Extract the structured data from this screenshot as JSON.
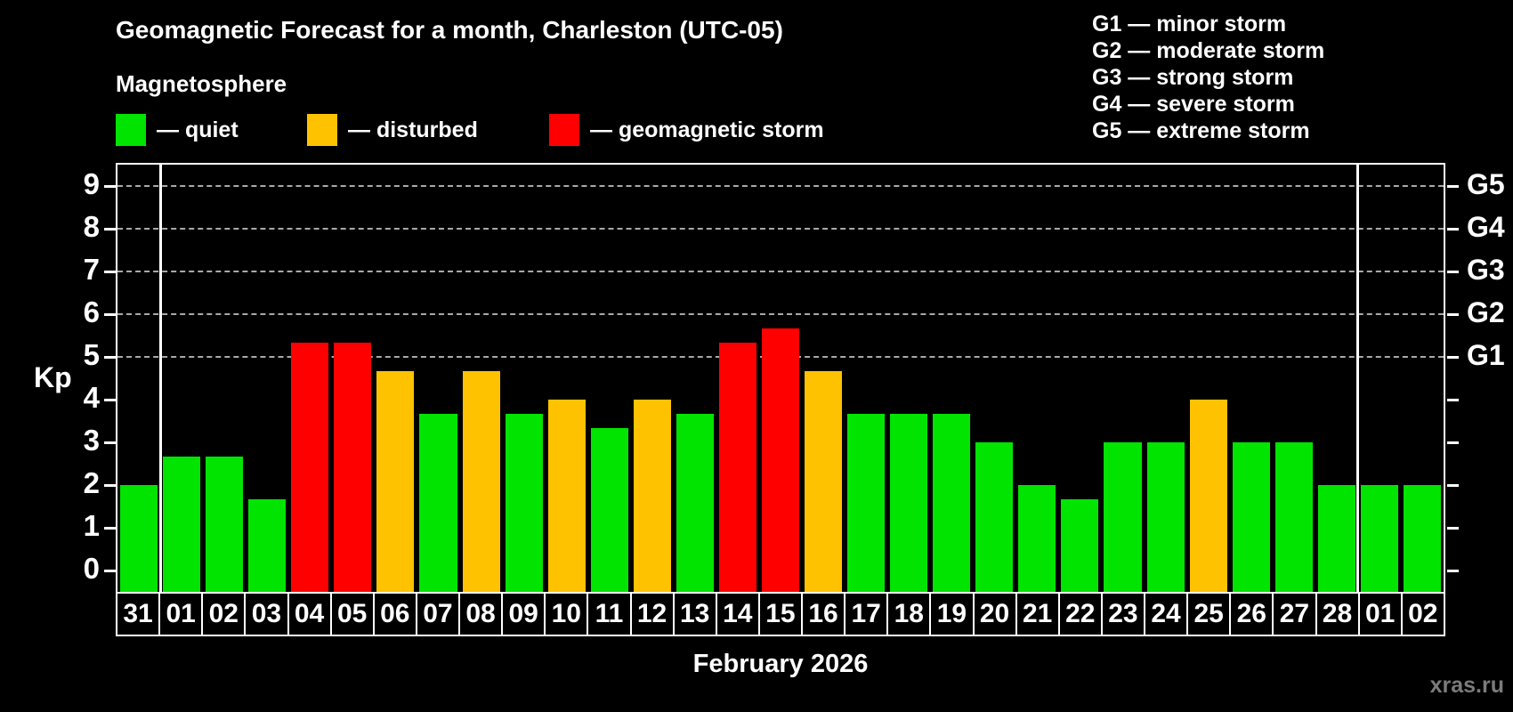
{
  "header": {
    "title": "Geomagnetic Forecast for a month, Charleston (UTC-05)",
    "subtitle": "Magnetosphere"
  },
  "legend": {
    "items": [
      {
        "name": "quiet",
        "label": "— quiet",
        "color": "#00e400"
      },
      {
        "name": "disturbed",
        "label": "— disturbed",
        "color": "#ffc200"
      },
      {
        "name": "storm",
        "label": "— geomagnetic storm",
        "color": "#ff0000"
      }
    ]
  },
  "g_legend": [
    "G1 — minor storm",
    "G2 — moderate storm",
    "G3 — strong storm",
    "G4 — severe storm",
    "G5 — extreme storm"
  ],
  "chart_data": {
    "type": "bar",
    "title": "Geomagnetic Forecast for a month, Charleston (UTC-05)",
    "xlabel": "February 2026",
    "ylabel": "Kp",
    "ylim": [
      -0.5,
      9.5
    ],
    "y_ticks": [
      0,
      1,
      2,
      3,
      4,
      5,
      6,
      7,
      8,
      9
    ],
    "gridlines_at": [
      5,
      6,
      7,
      8,
      9
    ],
    "grid": "dashed horizontal at Kp 5-9 only",
    "legend_position": "top",
    "right_axis_labels": [
      {
        "value": 5,
        "label": "G1"
      },
      {
        "value": 6,
        "label": "G2"
      },
      {
        "value": 7,
        "label": "G3"
      },
      {
        "value": 8,
        "label": "G4"
      },
      {
        "value": 9,
        "label": "G5"
      }
    ],
    "categories": [
      "31",
      "01",
      "02",
      "03",
      "04",
      "05",
      "06",
      "07",
      "08",
      "09",
      "10",
      "11",
      "12",
      "13",
      "14",
      "15",
      "16",
      "17",
      "18",
      "19",
      "20",
      "21",
      "22",
      "23",
      "24",
      "25",
      "26",
      "27",
      "28",
      "01",
      "02"
    ],
    "values": [
      2.0,
      2.67,
      2.67,
      1.67,
      5.33,
      5.33,
      4.67,
      3.67,
      4.67,
      3.67,
      4.0,
      3.33,
      4.0,
      3.67,
      5.33,
      5.67,
      4.67,
      3.67,
      3.67,
      3.67,
      3.0,
      2.0,
      1.67,
      3.0,
      3.0,
      4.0,
      3.0,
      3.0,
      2.0,
      2.0,
      2.0
    ],
    "statuses": [
      "quiet",
      "quiet",
      "quiet",
      "quiet",
      "storm",
      "storm",
      "disturbed",
      "quiet",
      "disturbed",
      "quiet",
      "disturbed",
      "quiet",
      "disturbed",
      "quiet",
      "storm",
      "storm",
      "disturbed",
      "quiet",
      "quiet",
      "quiet",
      "quiet",
      "quiet",
      "quiet",
      "quiet",
      "quiet",
      "disturbed",
      "quiet",
      "quiet",
      "quiet",
      "quiet",
      "quiet"
    ],
    "colors": {
      "quiet": "#00e400",
      "disturbed": "#ffc200",
      "storm": "#ff0000"
    },
    "month_separator_before_index": [
      1,
      29
    ]
  },
  "footer": {
    "xaxis_title": "February 2026",
    "watermark": "xras.ru"
  }
}
